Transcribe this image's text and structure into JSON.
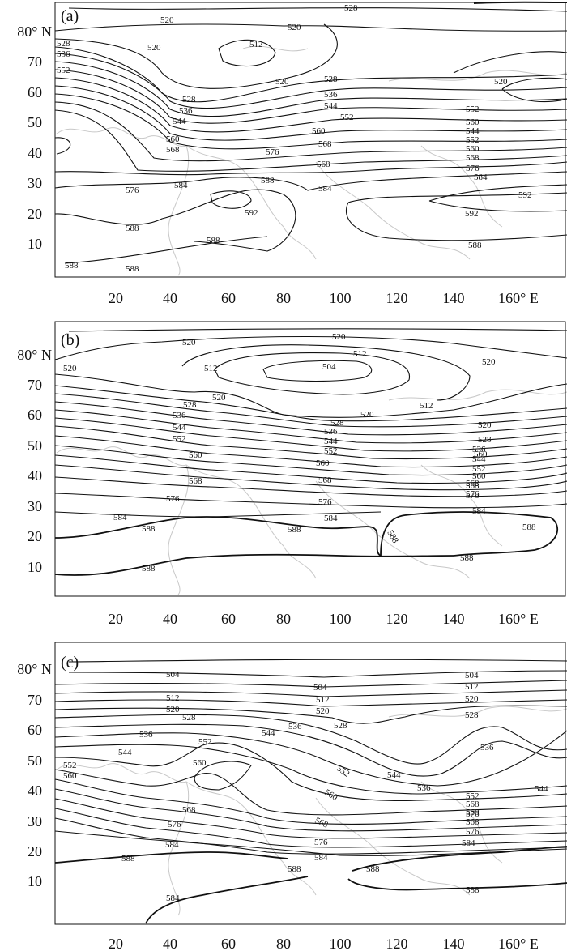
{
  "panels": [
    {
      "id": "a",
      "tag": "(a)",
      "y_ticks": [
        "80° N",
        "70",
        "60",
        "50",
        "40",
        "30",
        "20",
        "10"
      ],
      "x_ticks": [
        "20",
        "40",
        "60",
        "80",
        "100",
        "120",
        "140",
        "160° E"
      ],
      "contour_labels": [
        "528",
        "520",
        "520",
        "512",
        "520",
        "528",
        "536",
        "552",
        "520",
        "528",
        "536",
        "544",
        "552",
        "560",
        "568",
        "520",
        "528",
        "536",
        "544",
        "552",
        "560",
        "568",
        "576",
        "584",
        "588",
        "592",
        "588",
        "588",
        "592",
        "584",
        "588",
        "576",
        "584",
        "588",
        "592",
        "568",
        "576",
        "560",
        "568",
        "544",
        "552",
        "560",
        "588"
      ]
    },
    {
      "id": "b",
      "tag": "(b)",
      "y_ticks": [
        "80° N",
        "70",
        "60",
        "50",
        "40",
        "30",
        "20",
        "10"
      ],
      "x_ticks": [
        "20",
        "40",
        "60",
        "80",
        "100",
        "120",
        "140",
        "160° E"
      ],
      "contour_labels": [
        "520",
        "520",
        "520",
        "512",
        "504",
        "512",
        "520",
        "512",
        "520",
        "528",
        "536",
        "544",
        "552",
        "560",
        "568",
        "576",
        "584",
        "588",
        "588",
        "588",
        "588",
        "588",
        "520",
        "528",
        "536",
        "544",
        "552",
        "560",
        "568",
        "576",
        "584",
        "560",
        "568",
        "576",
        "584",
        "588",
        "528",
        "536",
        "544",
        "552",
        "560",
        "568",
        "576",
        "520"
      ]
    },
    {
      "id": "c",
      "tag": "(c)",
      "y_ticks": [
        "80° N",
        "70",
        "60",
        "50",
        "40",
        "30",
        "20",
        "10"
      ],
      "x_ticks": [
        "20",
        "40",
        "60",
        "80",
        "100",
        "120",
        "140",
        "160° E"
      ],
      "contour_labels": [
        "504",
        "504",
        "504",
        "512",
        "512",
        "512",
        "520",
        "520",
        "520",
        "528",
        "528",
        "528",
        "536",
        "536",
        "536",
        "544",
        "544",
        "544",
        "552",
        "552",
        "552",
        "560",
        "560",
        "560",
        "568",
        "568",
        "568",
        "576",
        "576",
        "576",
        "584",
        "584",
        "584",
        "588",
        "588",
        "588",
        "588",
        "536",
        "544",
        "552",
        "560",
        "568",
        "576",
        "584"
      ]
    }
  ],
  "colors": {
    "contour": "#111111",
    "coastline": "#c8c8c8",
    "frame": "#111111"
  }
}
